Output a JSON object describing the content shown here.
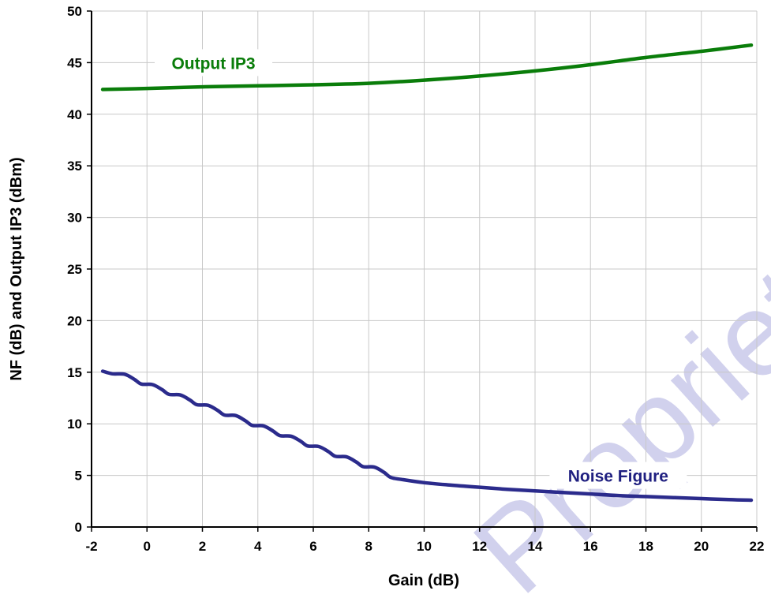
{
  "chart_data": {
    "type": "line",
    "title": "",
    "xlabel": "Gain (dB)",
    "ylabel": "NF (dB) and Output IP3 (dBm)",
    "xlim": [
      -2,
      22
    ],
    "ylim": [
      0,
      50
    ],
    "x_ticks": [
      -2,
      0,
      2,
      4,
      6,
      8,
      10,
      12,
      14,
      16,
      18,
      20,
      22
    ],
    "y_ticks": [
      0,
      5,
      10,
      15,
      20,
      25,
      30,
      35,
      40,
      45,
      50
    ],
    "grid": true,
    "legend": "none (inline series labels)",
    "series": [
      {
        "name": "Output IP3",
        "color": "#0a7d0a",
        "x": [
          -1.6,
          0,
          2,
          4,
          6,
          8,
          10,
          12,
          14,
          16,
          18,
          20,
          21.8
        ],
        "y": [
          42.4,
          42.5,
          42.65,
          42.75,
          42.85,
          43.0,
          43.3,
          43.7,
          44.2,
          44.8,
          45.5,
          46.1,
          46.7
        ]
      },
      {
        "name": "Noise Figure",
        "color": "#2b2b8c",
        "x": [
          -1.6,
          -1.25,
          -0.8,
          -0.45,
          -0.2,
          0.2,
          0.55,
          0.8,
          1.2,
          1.55,
          1.8,
          2.2,
          2.55,
          2.8,
          3.2,
          3.55,
          3.8,
          4.2,
          4.55,
          4.8,
          5.2,
          5.55,
          5.8,
          6.2,
          6.55,
          6.8,
          7.2,
          7.55,
          7.8,
          8.2,
          8.55,
          8.8,
          9.2,
          10,
          11,
          12,
          13,
          14,
          15,
          16,
          17,
          18,
          19,
          20,
          21,
          21.8
        ],
        "y": [
          15.1,
          14.85,
          14.8,
          14.3,
          13.85,
          13.8,
          13.3,
          12.85,
          12.8,
          12.3,
          11.85,
          11.8,
          11.3,
          10.85,
          10.8,
          10.3,
          9.85,
          9.8,
          9.3,
          8.85,
          8.8,
          8.3,
          7.85,
          7.8,
          7.3,
          6.85,
          6.8,
          6.3,
          5.85,
          5.8,
          5.3,
          4.8,
          4.6,
          4.3,
          4.05,
          3.85,
          3.65,
          3.5,
          3.35,
          3.2,
          3.05,
          2.95,
          2.85,
          2.75,
          2.65,
          2.6
        ]
      }
    ],
    "annotations": [
      {
        "text": "Output IP3",
        "x": 2.4,
        "y": 45.0,
        "color": "#0a7d0a"
      },
      {
        "text": "Noise Figure",
        "x": 17.0,
        "y": 5.0,
        "color": "#1f1f80"
      }
    ]
  },
  "watermark": {
    "text": "Proprietary",
    "color": "#c9c9ea"
  }
}
